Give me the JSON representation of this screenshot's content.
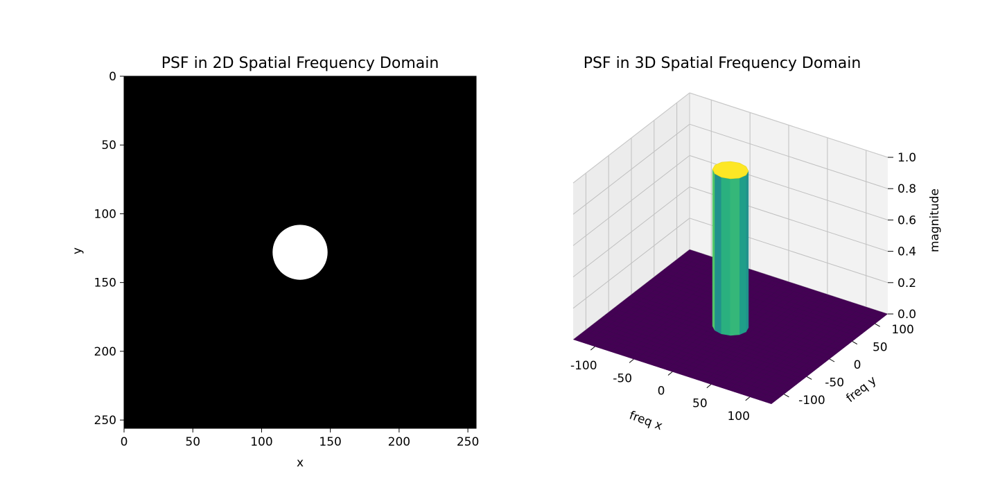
{
  "chart_data": [
    {
      "type": "heatmap",
      "title": "PSF in 2D Spatial Frequency Domain",
      "xlabel": "x",
      "ylabel": "y",
      "xlim": [
        0,
        256
      ],
      "ylim": [
        256,
        0
      ],
      "xticks": [
        0,
        50,
        100,
        150,
        200,
        250
      ],
      "yticks": [
        0,
        50,
        100,
        150,
        200,
        250
      ],
      "colormap": "gray",
      "background_value": 0,
      "disk": {
        "center": [
          128,
          128
        ],
        "radius": 20,
        "value": 1
      }
    },
    {
      "type": "surface",
      "title": "PSF in 3D Spatial Frequency Domain",
      "xlabel": "freq x",
      "ylabel": "freq y",
      "zlabel": "magnitude",
      "xlim": [
        -128,
        128
      ],
      "ylim": [
        -128,
        128
      ],
      "zlim": [
        0,
        1
      ],
      "xticks": [
        -100,
        -50,
        0,
        50,
        100
      ],
      "yticks": [
        -100,
        -50,
        0,
        50,
        100
      ],
      "zticks": [
        "0.0",
        "0.2",
        "0.4",
        "0.6",
        "0.8",
        "1.0"
      ],
      "colormap": "viridis",
      "cutoff_radius": 20,
      "pass_value": 1,
      "stop_value": 0,
      "grid": true
    }
  ],
  "colors": {
    "background": "#000000",
    "disk": "#ffffff",
    "floor": "#440154",
    "top": "#fde725",
    "pane_back": "#f2f2f2",
    "pane_side": "#ececec",
    "pane_floor": "#e6e6e6",
    "gridline": "#bfbfbf"
  }
}
